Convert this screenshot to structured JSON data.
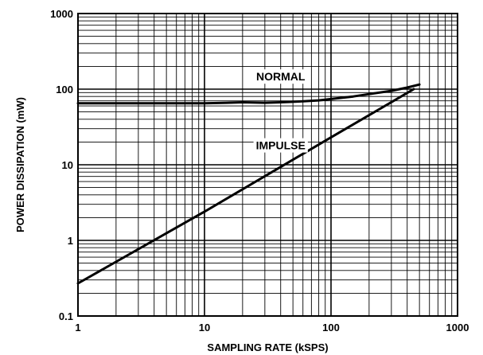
{
  "chart_data": {
    "type": "line",
    "title": "",
    "xlabel": "SAMPLING RATE (kSPS)",
    "ylabel": "POWER DISSIPATION (mW)",
    "xscale": "log",
    "yscale": "log",
    "xlim": [
      1,
      1000
    ],
    "ylim": [
      0.1,
      1000
    ],
    "xticks": [
      1,
      10,
      100,
      1000
    ],
    "xtick_labels": [
      "1",
      "10",
      "100",
      "1000"
    ],
    "yticks": [
      0.1,
      1,
      10,
      100,
      1000
    ],
    "ytick_labels": [
      "0.1",
      "1",
      "10",
      "100",
      "1000"
    ],
    "grid": true,
    "legend": "none",
    "series": [
      {
        "name": "NORMAL",
        "x": [
          1,
          2,
          5,
          10,
          15,
          20,
          30,
          40,
          50,
          60,
          80,
          100,
          150,
          200,
          300,
          400,
          500
        ],
        "y": [
          65,
          65,
          65,
          65,
          66,
          67,
          66,
          67,
          68,
          69,
          71,
          74,
          80,
          86,
          95,
          105,
          115
        ]
      },
      {
        "name": "IMPULSE",
        "x": [
          1,
          10,
          100,
          450
        ],
        "y": [
          0.27,
          2.4,
          23,
          100
        ]
      }
    ],
    "annotations": [
      {
        "text": "NORMAL",
        "x": 40,
        "y": 130
      },
      {
        "text": "IMPULSE",
        "x": 40,
        "y": 16
      }
    ]
  }
}
